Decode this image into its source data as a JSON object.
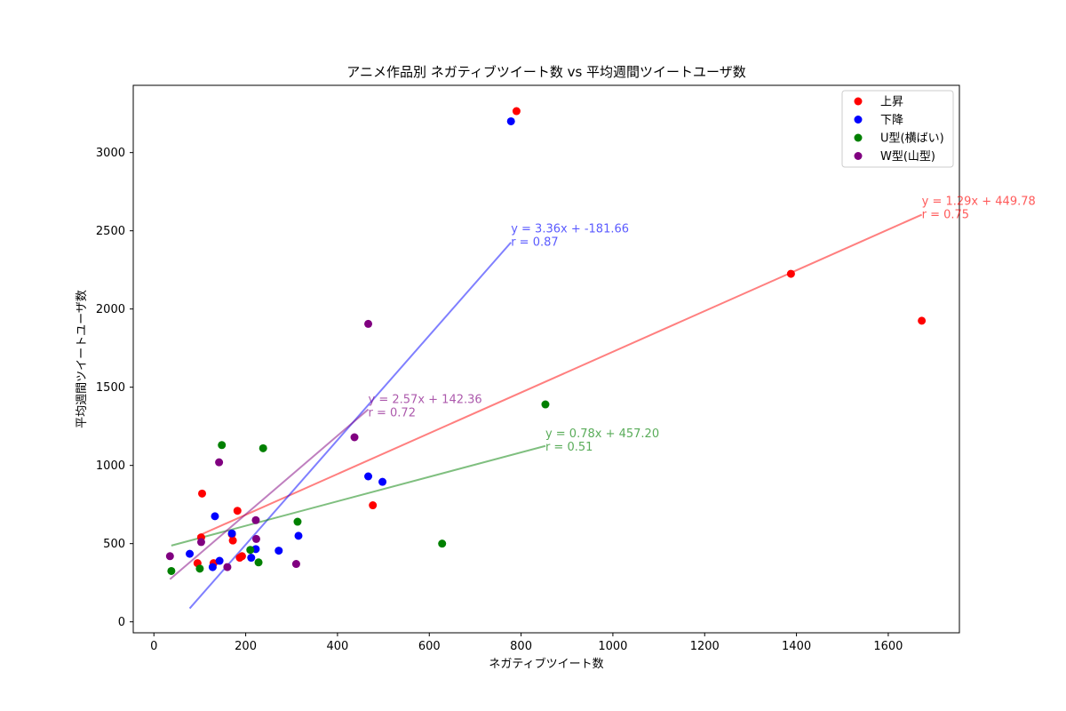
{
  "chart_data": {
    "type": "scatter",
    "title": "アニメ作品別 ネガティブツイート数 vs 平均週間ツイートユーザ数",
    "xlabel": "ネガティブツイート数",
    "ylabel": "平均週間ツイートユーザ数",
    "xlim": [
      -45,
      1755
    ],
    "ylim": [
      -70,
      3430
    ],
    "xticks": [
      0,
      200,
      400,
      600,
      800,
      1000,
      1200,
      1400,
      1600
    ],
    "yticks": [
      0,
      500,
      1000,
      1500,
      2000,
      2500,
      3000
    ],
    "grid": false,
    "legend_position": "top-right",
    "series": [
      {
        "name": "上昇",
        "color": "#ff0000",
        "points": [
          [
            95,
            375
          ],
          [
            103,
            540
          ],
          [
            105,
            820
          ],
          [
            130,
            375
          ],
          [
            170,
            560
          ],
          [
            172,
            520
          ],
          [
            182,
            710
          ],
          [
            187,
            410
          ],
          [
            192,
            420
          ],
          [
            477,
            745
          ],
          [
            790,
            3265
          ],
          [
            1388,
            2225
          ],
          [
            1673,
            1925
          ]
        ],
        "fit": {
          "x_range": [
            95,
            1673
          ],
          "label_line1": "y = 1.29x + 449.78",
          "label_line2": "r = 0.75",
          "label_x": 1673,
          "label_y": 2608
        }
      },
      {
        "name": "下降",
        "color": "#0000ff",
        "points": [
          [
            78,
            435
          ],
          [
            128,
            350
          ],
          [
            133,
            675
          ],
          [
            143,
            390
          ],
          [
            170,
            565
          ],
          [
            212,
            410
          ],
          [
            222,
            465
          ],
          [
            272,
            455
          ],
          [
            315,
            550
          ],
          [
            467,
            930
          ],
          [
            498,
            895
          ],
          [
            778,
            3200
          ]
        ],
        "fit": {
          "x_range": [
            78,
            778
          ],
          "label_line1": "y = 3.36x + -181.66",
          "label_line2": "r = 0.87",
          "label_x": 778,
          "label_y": 2432
        }
      },
      {
        "name": "U型(横ばい)",
        "color": "#008000",
        "points": [
          [
            38,
            325
          ],
          [
            100,
            340
          ],
          [
            148,
            1130
          ],
          [
            210,
            460
          ],
          [
            228,
            380
          ],
          [
            238,
            1110
          ],
          [
            313,
            640
          ],
          [
            628,
            500
          ],
          [
            853,
            1390
          ]
        ],
        "fit": {
          "x_range": [
            38,
            853
          ],
          "label_line1": "y = 0.78x + 457.20",
          "label_line2": "r = 0.51",
          "label_x": 853,
          "label_y": 1123
        }
      },
      {
        "name": "W型(山型)",
        "color": "#800080",
        "points": [
          [
            35,
            420
          ],
          [
            103,
            510
          ],
          [
            142,
            1020
          ],
          [
            160,
            350
          ],
          [
            222,
            650
          ],
          [
            223,
            530
          ],
          [
            310,
            370
          ],
          [
            437,
            1180
          ],
          [
            467,
            1905
          ]
        ],
        "fit": {
          "x_range": [
            35,
            467
          ],
          "label_line1": "y = 2.57x + 142.36",
          "label_line2": "r = 0.72",
          "label_x": 467,
          "label_y": 1343
        }
      }
    ]
  }
}
